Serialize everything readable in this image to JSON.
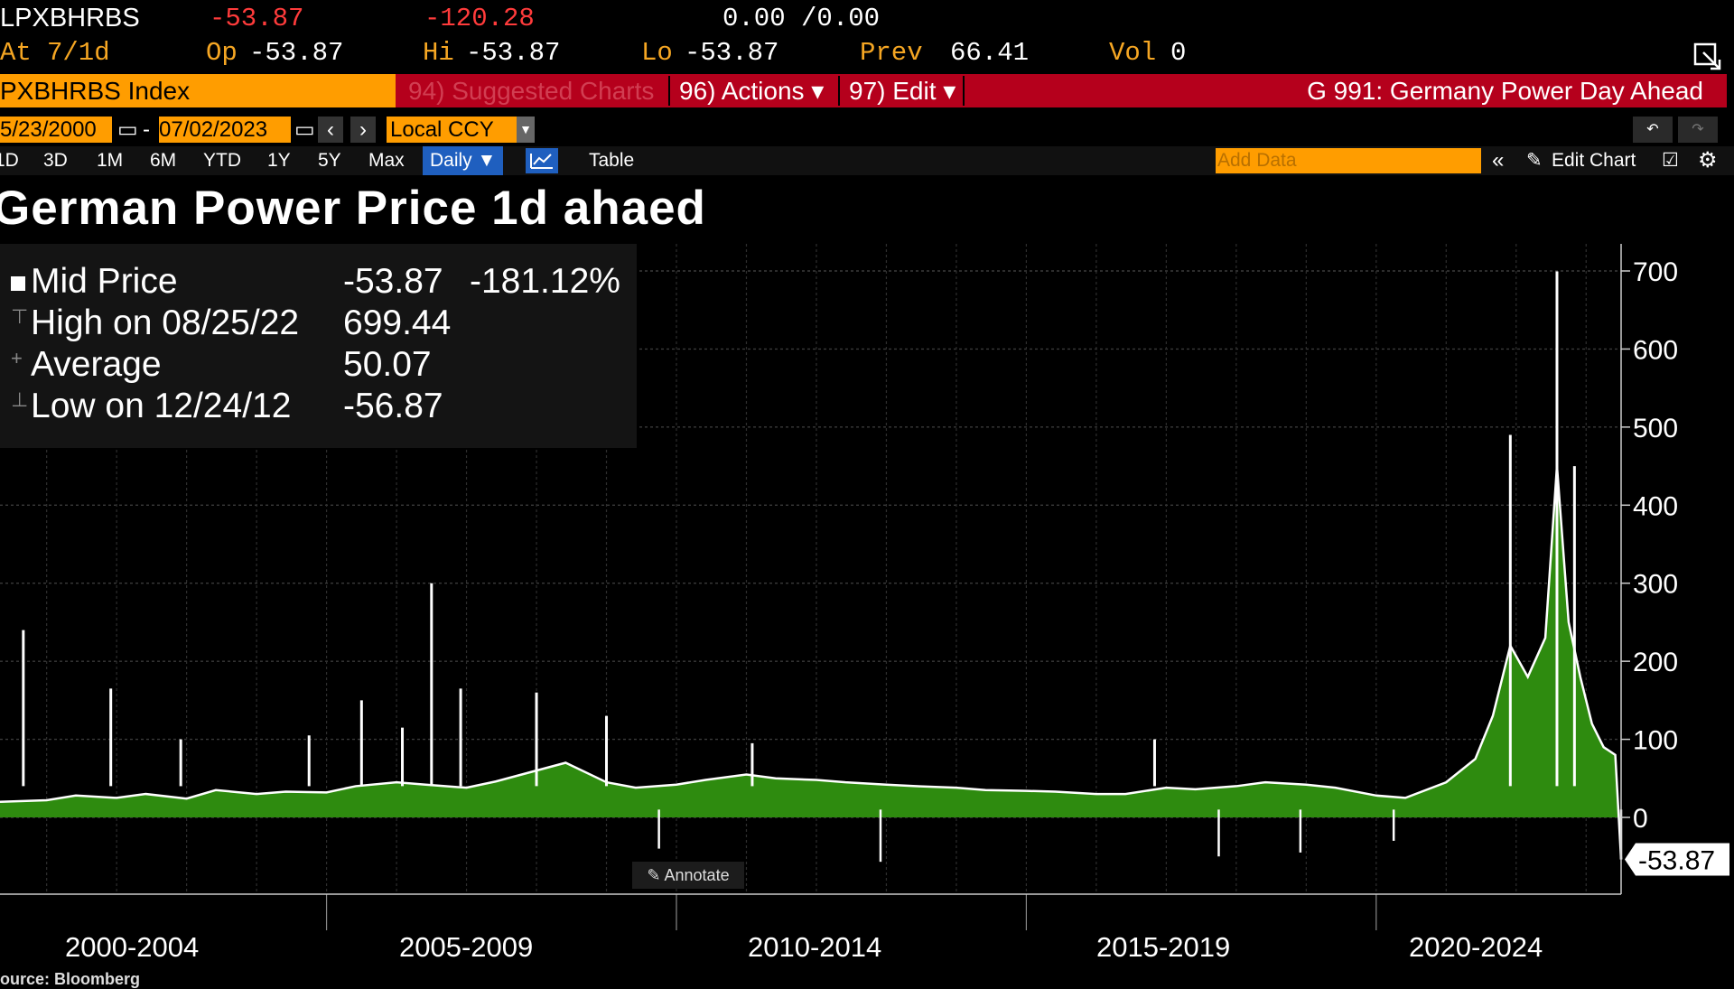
{
  "quote": {
    "ticker": "LPXBHRBS",
    "last": "-53.87",
    "change": "-120.28",
    "bidask": "0.00 /0.00",
    "at_label": "At",
    "at_value": "7/1d",
    "op_label": "Op",
    "op_value": "-53.87",
    "hi_label": "Hi",
    "hi_value": "-53.87",
    "lo_label": "Lo",
    "lo_value": "-53.87",
    "prev_label": "Prev",
    "prev_value": "66.41",
    "vol_label": "Vol",
    "vol_value": "0"
  },
  "function_bar": {
    "security": "PXBHRBS Index",
    "suggested": "94) Suggested Charts",
    "actions": "96) Actions ▾",
    "edit": "97) Edit ▾",
    "function_title": "G 991: Germany Power Day Ahead"
  },
  "date_range": {
    "start": "5/23/2000",
    "dash": "-",
    "end": "07/02/2023",
    "currency": "Local CCY"
  },
  "periods": [
    "1D",
    "3D",
    "1M",
    "6M",
    "YTD",
    "1Y",
    "5Y",
    "Max"
  ],
  "frequency": "Daily ▼",
  "table_label": "Table",
  "add_data_placeholder": "Add Data",
  "edit_chart_label": "Edit Chart",
  "annotate_label": "Annotate",
  "source": "ource: Bloomberg",
  "colors": {
    "accent": "#ff9d00",
    "function_bar": "#b5001c",
    "series_line": "#ffffff",
    "series_fill": "#2e8b0f",
    "negative": "#ff3b3b"
  },
  "chart_data": {
    "type": "area",
    "title": "German Power Price 1d ahaed",
    "ylim": [
      -100,
      700
    ],
    "y_ticks": [
      0,
      100,
      200,
      300,
      400,
      500,
      600,
      700
    ],
    "x_period_labels": [
      "2000-2004",
      "2005-2009",
      "2010-2014",
      "2015-2019",
      "2020-2024"
    ],
    "grid": true,
    "legend": [
      {
        "label": "Mid Price",
        "value": "-53.87",
        "extra": "-181.12%"
      },
      {
        "label": "High on 08/25/22",
        "value": "699.44"
      },
      {
        "label": "Average",
        "value": "50.07"
      },
      {
        "label": "Low on 12/24/12",
        "value": "-56.87"
      }
    ],
    "last_value_label": "-53.87",
    "series": [
      {
        "x": [
          "2000-05",
          "2001-01",
          "2001-06",
          "2002-01",
          "2002-06",
          "2003-01",
          "2003-06",
          "2004-01",
          "2004-06",
          "2005-01",
          "2005-06",
          "2006-01",
          "2006-06",
          "2007-01",
          "2007-06",
          "2008-01",
          "2008-06",
          "2009-01",
          "2009-06",
          "2010-01",
          "2010-06",
          "2011-01",
          "2011-06",
          "2012-01",
          "2012-06",
          "2013-01",
          "2013-06",
          "2014-01",
          "2014-06",
          "2015-01",
          "2015-06",
          "2016-01",
          "2016-06",
          "2017-01",
          "2017-06",
          "2018-01",
          "2018-06",
          "2019-01",
          "2019-06",
          "2020-01",
          "2020-06",
          "2021-01",
          "2021-06",
          "2021-09",
          "2021-12",
          "2022-03",
          "2022-06",
          "2022-08",
          "2022-10",
          "2022-12",
          "2023-02",
          "2023-04",
          "2023-06",
          "2023-07"
        ],
        "values": [
          20,
          22,
          28,
          25,
          30,
          24,
          35,
          30,
          33,
          32,
          40,
          45,
          42,
          38,
          46,
          60,
          70,
          45,
          38,
          42,
          48,
          55,
          50,
          48,
          45,
          42,
          40,
          38,
          35,
          34,
          33,
          30,
          30,
          38,
          36,
          40,
          45,
          42,
          38,
          28,
          25,
          45,
          75,
          130,
          220,
          180,
          230,
          450,
          250,
          180,
          120,
          90,
          80,
          -53.87
        ]
      }
    ],
    "spikes": [
      {
        "x": "2000-09",
        "value": 240
      },
      {
        "x": "2001-12",
        "value": 165
      },
      {
        "x": "2002-12",
        "value": 100
      },
      {
        "x": "2004-10",
        "value": 105
      },
      {
        "x": "2005-07",
        "value": 150
      },
      {
        "x": "2006-02",
        "value": 115
      },
      {
        "x": "2006-07",
        "value": 300
      },
      {
        "x": "2006-12",
        "value": 165
      },
      {
        "x": "2008-01",
        "value": 160
      },
      {
        "x": "2009-01",
        "value": 130
      },
      {
        "x": "2011-02",
        "value": 95
      },
      {
        "x": "2016-11",
        "value": 100
      },
      {
        "x": "2021-12",
        "value": 490
      },
      {
        "x": "2022-08",
        "value": 699.44
      },
      {
        "x": "2022-11",
        "value": 450
      }
    ],
    "dips": [
      {
        "x": "2009-10",
        "value": -40
      },
      {
        "x": "2012-12",
        "value": -56.87
      },
      {
        "x": "2017-10",
        "value": -50
      },
      {
        "x": "2018-12",
        "value": -45
      },
      {
        "x": "2020-04",
        "value": -30
      },
      {
        "x": "2023-07",
        "value": -53.87
      }
    ]
  }
}
